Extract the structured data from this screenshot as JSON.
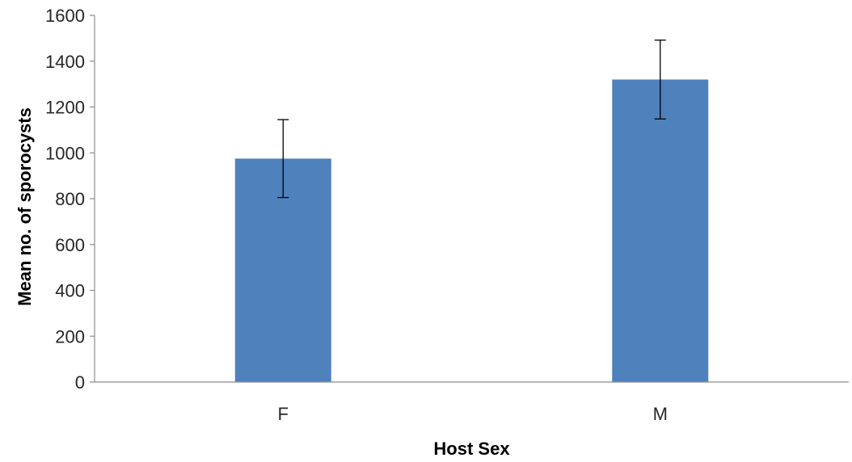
{
  "chart_data": {
    "type": "bar",
    "title": "",
    "xlabel": "Host Sex",
    "ylabel": "Mean no. of sporocysts",
    "categories": [
      "F",
      "M"
    ],
    "series": [
      {
        "values": [
          975,
          1320
        ],
        "error": [
          170,
          172
        ],
        "color": "#4f81bd"
      }
    ],
    "ylim": [
      0,
      1600
    ],
    "yticks": [
      0,
      200,
      400,
      600,
      800,
      1000,
      1200,
      1400,
      1600
    ],
    "grid": false,
    "legend": "none"
  }
}
